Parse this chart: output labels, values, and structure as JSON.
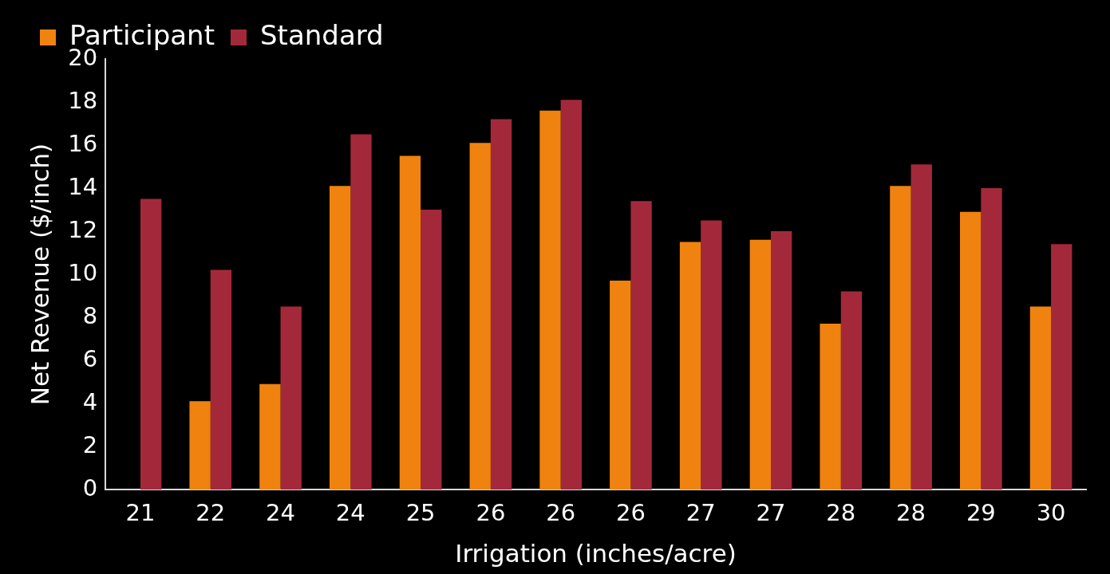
{
  "chart_data": {
    "type": "bar",
    "categories": [
      "21",
      "22",
      "24",
      "24",
      "25",
      "26",
      "26",
      "26",
      "27",
      "27",
      "28",
      "28",
      "29",
      "30"
    ],
    "series": [
      {
        "name": "Participant",
        "color": "#f0820f",
        "values": [
          0,
          4.1,
          4.9,
          14.1,
          15.5,
          16.1,
          17.6,
          9.7,
          11.5,
          11.6,
          7.7,
          14.1,
          12.9,
          8.5
        ]
      },
      {
        "name": "Standard",
        "color": "#a3293a",
        "values": [
          13.5,
          10.2,
          8.5,
          16.5,
          13.0,
          17.2,
          18.1,
          13.4,
          12.5,
          12.0,
          9.2,
          15.1,
          14.0,
          11.4
        ]
      }
    ],
    "xlabel": "Irrigation (inches/acre)",
    "ylabel": "Net Revenue ($/inch)",
    "ylim": [
      0,
      20
    ],
    "yticks": [
      0,
      2,
      4,
      6,
      8,
      10,
      12,
      14,
      16,
      18,
      20
    ],
    "grid": false,
    "legend": "top left"
  }
}
